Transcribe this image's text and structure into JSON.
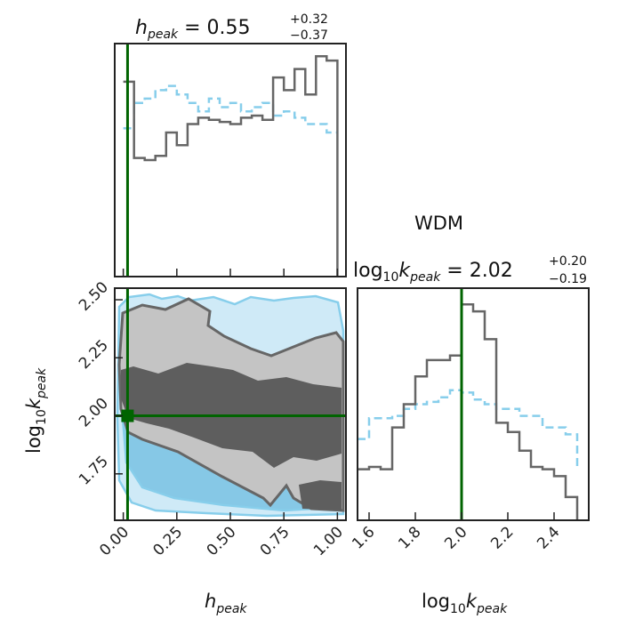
{
  "chart_data": {
    "type": "corner",
    "label": "WDM",
    "colors": {
      "posterior": "#666666",
      "posterior_inner": "#5e5e5e",
      "posterior_outer": "#c4c4c4",
      "prior": "#87ceeb",
      "prior_inner": "#86c8e6",
      "prior_outer": "#cfeaf7",
      "truth": "#006400",
      "frame": "#222222"
    },
    "h_peak": {
      "title": {
        "base": "h",
        "sub": "peak",
        "eq": " = 0.55",
        "plus": "+0.32",
        "minus": "−0.37"
      },
      "xlabel": {
        "base": "h",
        "sub": "peak"
      },
      "range": [
        -0.04,
        1.04
      ],
      "ticks": [
        "0.00",
        "0.25",
        "0.50",
        "0.75",
        "1.00"
      ],
      "tick_values": [
        0.0,
        0.25,
        0.5,
        0.75,
        1.0
      ],
      "truth": 0.02,
      "bins": [
        0.0,
        0.05,
        0.1,
        0.15,
        0.2,
        0.25,
        0.3,
        0.35,
        0.4,
        0.45,
        0.5,
        0.55,
        0.6,
        0.65,
        0.7,
        0.75,
        0.8,
        0.85,
        0.9,
        0.95,
        1.0
      ],
      "posterior": [
        0.92,
        0.56,
        0.55,
        0.57,
        0.68,
        0.62,
        0.72,
        0.75,
        0.74,
        0.73,
        0.72,
        0.75,
        0.76,
        0.74,
        0.94,
        0.88,
        0.98,
        0.86,
        1.04,
        1.02
      ],
      "prior": [
        0.7,
        0.82,
        0.84,
        0.88,
        0.9,
        0.86,
        0.82,
        0.78,
        0.84,
        0.8,
        0.82,
        0.78,
        0.8,
        0.82,
        0.76,
        0.78,
        0.75,
        0.72,
        0.72,
        0.68
      ],
      "ylim": [
        0,
        1.1
      ]
    },
    "log10_k_peak": {
      "title": {
        "base": "log",
        "base_sub": "10",
        "k": "k",
        "sub": "peak",
        "eq": " = 2.02",
        "plus": "+0.20",
        "minus": "−0.19"
      },
      "xlabel": {
        "base": "log",
        "base_sub": "10",
        "k": "k",
        "sub": "peak"
      },
      "ylabel": {
        "base": "log",
        "base_sub": "10",
        "k": "k",
        "sub": "peak"
      },
      "range": [
        1.55,
        2.55
      ],
      "ticks": [
        "1.6",
        "1.8",
        "2.0",
        "2.2",
        "2.4"
      ],
      "tick_values": [
        1.6,
        1.8,
        2.0,
        2.2,
        2.4
      ],
      "y_ticks": [
        "1.75",
        "2.00",
        "2.25",
        "2.50"
      ],
      "y_tick_values": [
        1.75,
        2.0,
        2.25,
        2.5
      ],
      "truth": 2.0,
      "bins": [
        1.55,
        1.6,
        1.65,
        1.7,
        1.75,
        1.8,
        1.85,
        1.9,
        1.95,
        2.0,
        2.05,
        2.1,
        2.15,
        2.2,
        2.25,
        2.3,
        2.35,
        2.4,
        2.45,
        2.5
      ],
      "posterior": [
        0.22,
        0.23,
        0.22,
        0.4,
        0.5,
        0.62,
        0.69,
        0.69,
        0.71,
        0.93,
        0.9,
        0.78,
        0.42,
        0.38,
        0.3,
        0.23,
        0.22,
        0.19,
        0.1
      ],
      "prior": [
        0.35,
        0.44,
        0.44,
        0.45,
        0.48,
        0.5,
        0.51,
        0.53,
        0.56,
        0.55,
        0.52,
        0.5,
        0.48,
        0.48,
        0.45,
        0.45,
        0.4,
        0.4,
        0.37
      ],
      "ylim": [
        0,
        1.0
      ]
    }
  }
}
